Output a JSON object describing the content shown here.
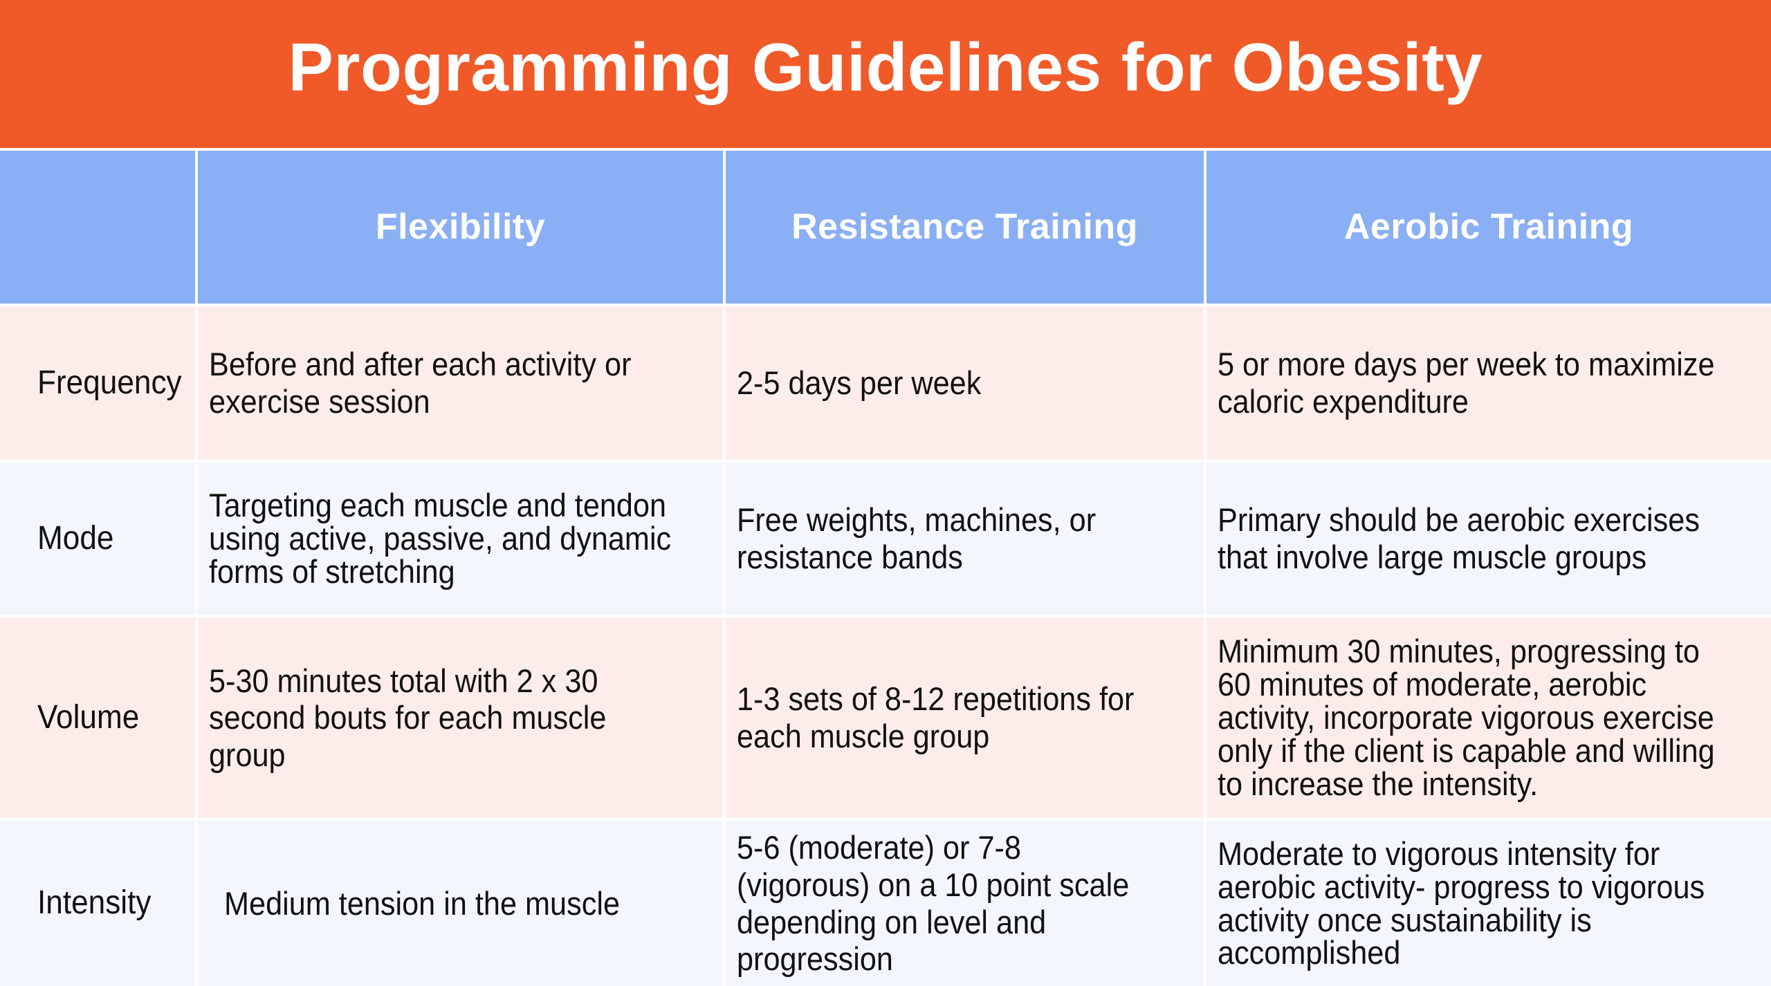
{
  "title": "Programming Guidelines for Obesity",
  "columns": [
    "",
    "Flexibility",
    "Resistance Training",
    "Aerobic Training"
  ],
  "rows": [
    {
      "label": "Frequency",
      "flexibility": "Before and after each activity or exercise session",
      "resistance": "2-5 days per week",
      "aerobic": "5 or more days per week to maximize caloric expenditure"
    },
    {
      "label": "Mode",
      "flexibility": "Targeting each muscle and tendon using active, passive, and dynamic forms of stretching",
      "resistance": "Free weights, machines, or resistance bands",
      "aerobic": "Primary should be aerobic exercises that involve large muscle groups"
    },
    {
      "label": "Volume",
      "flexibility": "5-30 minutes total with 2 x 30 second bouts for each muscle group",
      "resistance": "1-3 sets of 8-12 repetitions for each muscle group",
      "aerobic": "Minimum 30 minutes, progressing to 60 minutes of moderate, aerobic activity, incorporate vigorous exercise only if the client is capable and willing to increase the intensity."
    },
    {
      "label": "Intensity",
      "flexibility": "Medium tension in the muscle",
      "resistance": "5-6 (moderate) or 7-8 (vigorous) on a 10 point scale depending on level and progression",
      "aerobic": "Moderate to vigorous intensity for aerobic activity- progress to vigorous activity once sustainability is accomplished"
    }
  ],
  "colors": {
    "title_bar": "#EF5A28",
    "header_row": "#8AAFF5",
    "row_pink": "#FDEDEA",
    "row_blue": "#F3F6FD"
  }
}
